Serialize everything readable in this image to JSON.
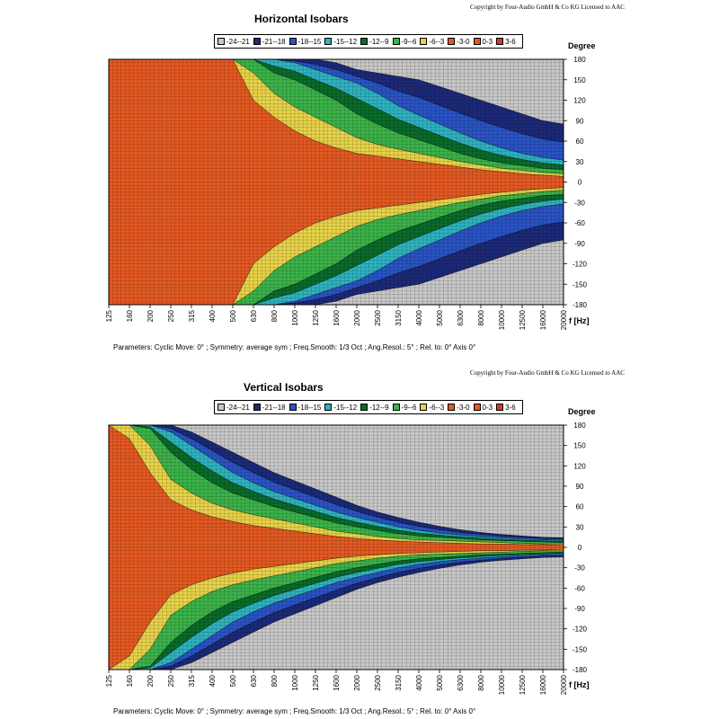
{
  "chart_data": [
    {
      "type": "heatmap",
      "title": "Horizontal Isobars",
      "copyright": "Copyright by Four-Audio GmbH & Co KG   Licensed to AAC",
      "legend": [
        "-24--21",
        "-21--18",
        "-18--15",
        "-15--12",
        "-12--9",
        "-9--6",
        "-6--3",
        "-3-0",
        "0-3",
        "3-6"
      ],
      "y_axis_title": "Degree",
      "x_axis_unit": "f [Hz]",
      "x_ticks": [
        "125",
        "160",
        "200",
        "250",
        "315",
        "400",
        "500",
        "630",
        "800",
        "1000",
        "1250",
        "1600",
        "2000",
        "2500",
        "3150",
        "4000",
        "5000",
        "6300",
        "8000",
        "10000",
        "12500",
        "16000",
        "20000"
      ],
      "y_ticks": [
        "180",
        "150",
        "120",
        "90",
        "60",
        "30",
        "0",
        "-30",
        "-60",
        "-90",
        "-120",
        "-150",
        "-180"
      ],
      "ylim": [
        -180,
        180
      ],
      "contour_edges": {
        "frequencies": [
          125,
          160,
          200,
          250,
          315,
          400,
          500,
          630,
          800,
          1000,
          1250,
          1600,
          2000,
          2500,
          3150,
          4000,
          5000,
          6300,
          8000,
          10000,
          12500,
          16000,
          20000
        ],
        "edge_-3dB": [
          180,
          180,
          180,
          180,
          180,
          180,
          180,
          120,
          95,
          75,
          60,
          50,
          42,
          38,
          34,
          30,
          26,
          22,
          18,
          15,
          12,
          10,
          8
        ],
        "edge_-6dB": [
          180,
          180,
          180,
          180,
          180,
          180,
          180,
          160,
          130,
          110,
          95,
          80,
          65,
          55,
          48,
          42,
          36,
          30,
          25,
          20,
          17,
          14,
          12
        ],
        "edge_-12dB": [
          180,
          180,
          180,
          180,
          180,
          180,
          180,
          180,
          160,
          150,
          135,
          120,
          100,
          85,
          72,
          62,
          52,
          42,
          34,
          28,
          24,
          20,
          18
        ],
        "edge_-18dB": [
          180,
          180,
          180,
          180,
          180,
          180,
          180,
          180,
          180,
          175,
          165,
          155,
          145,
          130,
          112,
          98,
          85,
          72,
          60,
          50,
          42,
          36,
          32
        ],
        "edge_-21dB": [
          180,
          180,
          180,
          180,
          180,
          180,
          180,
          180,
          180,
          180,
          180,
          175,
          165,
          160,
          155,
          150,
          140,
          130,
          120,
          110,
          100,
          90,
          85
        ]
      }
    },
    {
      "type": "heatmap",
      "title": "Vertical Isobars",
      "copyright": "Copyright by Four-Audio GmbH & Co KG   Licensed to AAC",
      "legend": [
        "-24--21",
        "-21--18",
        "-18--15",
        "-15--12",
        "-12--9",
        "-9--6",
        "-6--3",
        "-3-0",
        "0-3",
        "3-6"
      ],
      "y_axis_title": "Degree",
      "x_axis_unit": "f [Hz]",
      "x_ticks": [
        "125",
        "160",
        "200",
        "250",
        "315",
        "400",
        "500",
        "630",
        "800",
        "1000",
        "1250",
        "1600",
        "2000",
        "2500",
        "3150",
        "4000",
        "5000",
        "6300",
        "8000",
        "10000",
        "12500",
        "16000",
        "20000"
      ],
      "y_ticks": [
        "180",
        "150",
        "120",
        "90",
        "60",
        "30",
        "0",
        "-30",
        "-60",
        "-90",
        "-120",
        "-150",
        "-180"
      ],
      "ylim": [
        -180,
        180
      ],
      "contour_edges": {
        "frequencies": [
          125,
          160,
          200,
          250,
          315,
          400,
          500,
          630,
          800,
          1000,
          1250,
          1600,
          2000,
          2500,
          3150,
          4000,
          5000,
          6300,
          8000,
          10000,
          12500,
          16000,
          20000
        ],
        "edge_-3dB": [
          180,
          160,
          110,
          70,
          55,
          45,
          38,
          32,
          28,
          24,
          20,
          16,
          13,
          11,
          9,
          8,
          7,
          6,
          5,
          5,
          4,
          4,
          3
        ],
        "edge_-6dB": [
          180,
          180,
          150,
          100,
          80,
          65,
          55,
          48,
          42,
          36,
          30,
          24,
          20,
          16,
          13,
          11,
          10,
          9,
          8,
          7,
          6,
          5,
          5
        ],
        "edge_-12dB": [
          180,
          180,
          175,
          140,
          115,
          95,
          80,
          70,
          60,
          52,
          44,
          36,
          30,
          25,
          20,
          17,
          15,
          13,
          11,
          10,
          9,
          8,
          7
        ],
        "edge_-18dB": [
          180,
          180,
          180,
          170,
          150,
          130,
          110,
          95,
          82,
          72,
          62,
          52,
          44,
          37,
          30,
          25,
          21,
          18,
          16,
          14,
          12,
          11,
          10
        ],
        "edge_-21dB": [
          180,
          180,
          180,
          180,
          170,
          155,
          140,
          125,
          110,
          98,
          86,
          74,
          62,
          52,
          44,
          37,
          31,
          26,
          22,
          19,
          17,
          15,
          14
        ]
      }
    }
  ],
  "parameters": {
    "cyclic_move": "Parameters:   Cyclic Move:  0°   ;  Symmetry: average sym   ;  Freq.Smooth: 1/3  Oct   ;  Ang.Resol.: 5°   ;  Rel. to: 0° Axis   0°"
  },
  "colors": {
    "-24--21": "#c8c8c8",
    "-21--18": "#1c2a78",
    "-18--15": "#2a54c4",
    "-15--12": "#2fb3c0",
    "-12--9": "#0a6b2a",
    "-9--6": "#3cb34a",
    "-6--3": "#e8d34a",
    "-3-0": "#e05a28",
    "0-3": "#e45a22",
    "3-6": "#d13c1e"
  }
}
